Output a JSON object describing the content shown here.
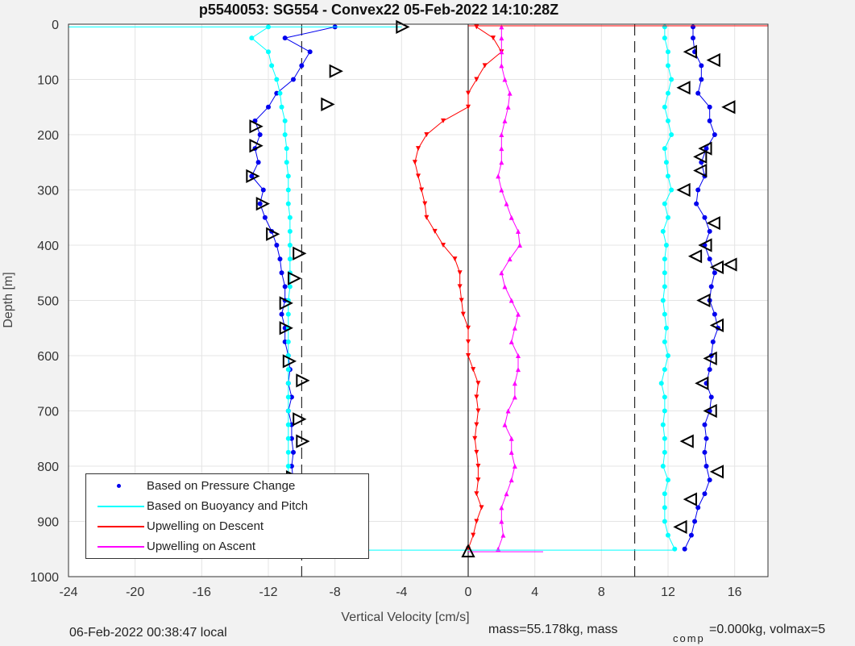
{
  "chart_data": {
    "type": "scatter",
    "title": "p5540053: SG554 - Convex22 05-Feb-2022 14:10:28Z",
    "xlabel": "Vertical Velocity [cm/s]",
    "ylabel": "Depth [m]",
    "xlim": [
      -24,
      18
    ],
    "ylim": [
      0,
      1000
    ],
    "y_reversed": true,
    "grid": true,
    "xticks": [
      -24,
      -20,
      -16,
      -12,
      -8,
      -4,
      0,
      4,
      8,
      12,
      16
    ],
    "yticks": [
      0,
      100,
      200,
      300,
      400,
      500,
      600,
      700,
      800,
      900,
      1000
    ],
    "reference_lines": [
      -10,
      0,
      10
    ],
    "legend_placement": "bottom-left",
    "legend": [
      "Based on Pressure Change",
      "Based on Buoyancy and Pitch",
      "Upwelling on Descent",
      "Upwelling on Ascent"
    ],
    "series": [
      {
        "name": "Based on Pressure Change (descent)",
        "color": "#0000ee",
        "depth": [
          5,
          25,
          50,
          75,
          100,
          125,
          150,
          175,
          200,
          225,
          250,
          275,
          300,
          325,
          350,
          375,
          400,
          425,
          450,
          475,
          500,
          525,
          550,
          575,
          600,
          625,
          650,
          675,
          700,
          725,
          750,
          775,
          800,
          825,
          850,
          875,
          900,
          925,
          950
        ],
        "value": [
          -8,
          -11,
          -9.5,
          -10,
          -10.5,
          -11.5,
          -12,
          -12.8,
          -12.5,
          -12.8,
          -12.6,
          -13,
          -12.3,
          -12.5,
          -12.2,
          -11.8,
          -11.5,
          -11.3,
          -11.2,
          -11,
          -11,
          -11.2,
          -11,
          -11,
          -10.8,
          -10.7,
          -10.8,
          -10.6,
          -10.8,
          -10.6,
          -10.6,
          -10.5,
          -10.6,
          -10.5,
          -10.5,
          -10.4,
          -10.5,
          -10.6,
          -10.8
        ]
      },
      {
        "name": "Based on Buoyancy and Pitch (descent)",
        "color": "#00ffff",
        "depth": [
          5,
          25,
          50,
          75,
          100,
          125,
          150,
          175,
          200,
          225,
          250,
          275,
          300,
          325,
          350,
          375,
          400,
          425,
          450,
          475,
          500,
          525,
          550,
          575,
          600,
          625,
          650,
          675,
          700,
          725,
          750,
          775,
          800,
          825,
          850,
          875,
          900,
          925,
          950
        ],
        "value": [
          -12,
          -13,
          -12,
          -11.8,
          -11.5,
          -11.3,
          -11.2,
          -11,
          -11,
          -10.9,
          -10.9,
          -10.8,
          -10.8,
          -10.8,
          -10.7,
          -10.7,
          -10.7,
          -10.7,
          -10.7,
          -10.7,
          -10.8,
          -10.8,
          -10.8,
          -10.8,
          -10.8,
          -10.8,
          -10.8,
          -10.8,
          -10.8,
          -10.8,
          -10.8,
          -10.8,
          -10.8,
          -10.8,
          -10.8,
          -10.8,
          -10.8,
          -10.8,
          -10.9
        ]
      },
      {
        "name": "Based on Pressure Change (ascent)",
        "color": "#0000ee",
        "depth": [
          5,
          25,
          50,
          75,
          100,
          125,
          150,
          175,
          200,
          225,
          250,
          275,
          300,
          325,
          350,
          375,
          400,
          425,
          450,
          475,
          500,
          525,
          550,
          575,
          600,
          625,
          650,
          675,
          700,
          725,
          750,
          775,
          800,
          825,
          850,
          875,
          900,
          925,
          950
        ],
        "value": [
          13.5,
          13.5,
          13.6,
          14,
          14,
          13.8,
          14.5,
          14.5,
          14.8,
          14.3,
          14,
          14.2,
          13.8,
          13.7,
          14.2,
          14.5,
          14.2,
          14.5,
          14.8,
          14.6,
          14.5,
          14.8,
          15,
          14.7,
          14.6,
          14.5,
          14.3,
          14.6,
          14.5,
          14.2,
          14.3,
          14.2,
          14.3,
          14.5,
          14.2,
          13.8,
          13.6,
          13.4,
          13
        ]
      },
      {
        "name": "Based on Buoyancy and Pitch (ascent)",
        "color": "#00ffff",
        "depth": [
          5,
          25,
          50,
          75,
          100,
          125,
          150,
          175,
          200,
          225,
          250,
          275,
          300,
          325,
          350,
          375,
          400,
          425,
          450,
          475,
          500,
          525,
          550,
          575,
          600,
          625,
          650,
          675,
          700,
          725,
          750,
          775,
          800,
          825,
          850,
          875,
          900,
          925,
          950
        ],
        "value": [
          11.8,
          11.8,
          12,
          12,
          12.2,
          12,
          11.8,
          12,
          12.2,
          11.8,
          11.9,
          12,
          12.2,
          11.8,
          12,
          11.7,
          11.9,
          11.8,
          11.8,
          11.8,
          11.7,
          11.8,
          11.9,
          11.8,
          12,
          11.8,
          11.6,
          11.8,
          11.8,
          11.7,
          11.8,
          11.8,
          11.7,
          12,
          11.8,
          11.8,
          11.8,
          12,
          12.4
        ]
      },
      {
        "name": "Upwelling on Descent",
        "color": "#ff0000",
        "depth": [
          5,
          25,
          50,
          75,
          100,
          125,
          150,
          175,
          200,
          225,
          250,
          275,
          300,
          325,
          350,
          375,
          400,
          425,
          450,
          475,
          500,
          525,
          550,
          575,
          600,
          625,
          650,
          675,
          700,
          725,
          750,
          775,
          800,
          825,
          850,
          875,
          900,
          925,
          950
        ],
        "value": [
          0.5,
          1.5,
          2,
          1,
          0.5,
          0,
          0,
          -1.5,
          -2.5,
          -3,
          -3.2,
          -3,
          -2.8,
          -2.6,
          -2.5,
          -2,
          -1.5,
          -0.8,
          -0.5,
          -0.5,
          -0.4,
          -0.3,
          0,
          0,
          0,
          0.3,
          0.6,
          0.5,
          0.6,
          0.5,
          0.4,
          0.5,
          0.6,
          0.6,
          0.5,
          0.8,
          0.5,
          0.3,
          0
        ]
      },
      {
        "name": "Upwelling on Ascent",
        "color": "#ff00ff",
        "depth": [
          5,
          25,
          50,
          75,
          100,
          125,
          150,
          175,
          200,
          225,
          250,
          275,
          300,
          325,
          350,
          375,
          400,
          425,
          450,
          475,
          500,
          525,
          550,
          575,
          600,
          625,
          650,
          675,
          700,
          725,
          750,
          775,
          800,
          825,
          850,
          875,
          900,
          925,
          950
        ],
        "value": [
          2,
          2,
          2,
          2,
          2.2,
          2.5,
          2.4,
          2.2,
          2,
          2,
          2,
          1.8,
          2,
          2.3,
          2.6,
          3,
          3.1,
          2.5,
          2,
          2.2,
          2.6,
          3,
          2.8,
          2.6,
          3,
          3,
          2.8,
          2.8,
          2.4,
          2.2,
          2.6,
          2.6,
          2.8,
          2.6,
          2.3,
          2,
          2,
          2.1,
          1.8
        ]
      }
    ],
    "markers": {
      "descent": [
        [
          85,
          -8
        ],
        [
          145,
          -8.5
        ],
        [
          185,
          -12.8
        ],
        [
          220,
          -12.8
        ],
        [
          275,
          -13
        ],
        [
          325,
          -12.4
        ],
        [
          380,
          -11.8
        ],
        [
          415,
          -10.2
        ],
        [
          460,
          -10.5
        ],
        [
          505,
          -11
        ],
        [
          550,
          -11
        ],
        [
          610,
          -10.8
        ],
        [
          645,
          -10
        ],
        [
          715,
          -10.2
        ],
        [
          755,
          -10
        ],
        [
          820,
          -10.6
        ],
        [
          870,
          -10.2
        ],
        [
          940,
          -10.6
        ]
      ],
      "ascent": [
        [
          50,
          13.4
        ],
        [
          65,
          14.8
        ],
        [
          115,
          13
        ],
        [
          150,
          15.7
        ],
        [
          225,
          14.3
        ],
        [
          240,
          14
        ],
        [
          265,
          14
        ],
        [
          300,
          13
        ],
        [
          360,
          14.8
        ],
        [
          400,
          14.3
        ],
        [
          420,
          13.7
        ],
        [
          440,
          15
        ],
        [
          435,
          15.8
        ],
        [
          500,
          14.2
        ],
        [
          545,
          15
        ],
        [
          605,
          14.6
        ],
        [
          650,
          14.1
        ],
        [
          700,
          14.6
        ],
        [
          755,
          13.2
        ],
        [
          810,
          15
        ],
        [
          860,
          13.4
        ],
        [
          910,
          12.8
        ]
      ],
      "surface": [
        [
          5,
          -4
        ],
        [
          955,
          0
        ],
        [
          950,
          -10.8
        ]
      ]
    }
  },
  "footer": {
    "local_time": "06-Feb-2022 00:38:47 local",
    "mass_text": "mass=55.178kg, mass",
    "comp_sub": "comp",
    "rest": "=0.000kg, volmax=5"
  }
}
